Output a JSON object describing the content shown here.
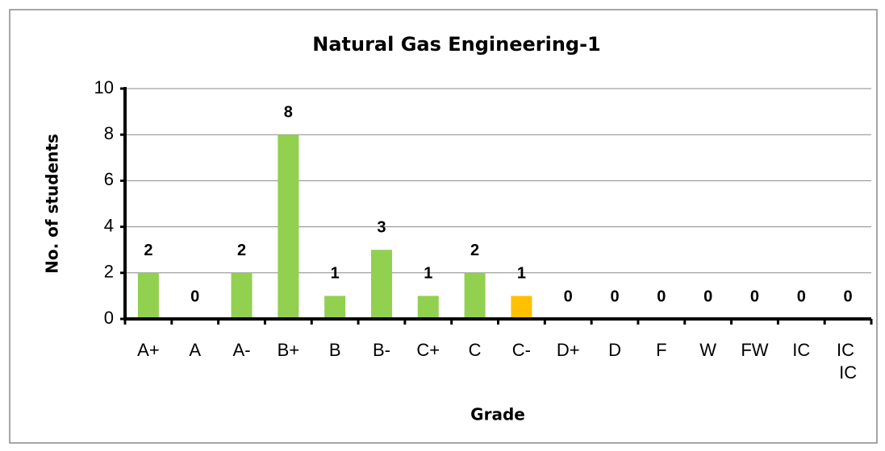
{
  "chart_data": {
    "type": "bar",
    "title": "Natural Gas Engineering-1",
    "x_label": "Grade",
    "y_label": "No. of students",
    "categories": [
      "A+",
      "A",
      "A-",
      "B+",
      "B",
      "B-",
      "C+",
      "C",
      "C-",
      "D+",
      "D",
      "F",
      "W",
      "FW",
      "IC",
      "IC IC"
    ],
    "values": [
      2,
      0,
      2,
      8,
      1,
      3,
      1,
      2,
      1,
      0,
      0,
      0,
      0,
      0,
      0,
      0
    ],
    "colors": [
      "#92d050",
      "#92d050",
      "#92d050",
      "#92d050",
      "#92d050",
      "#92d050",
      "#92d050",
      "#92d050",
      "#ffc000",
      "#92d050",
      "#92d050",
      "#92d050",
      "#92d050",
      "#92d050",
      "#92d050",
      "#92d050"
    ],
    "ylim": [
      0,
      10
    ],
    "yticks": [
      0,
      2,
      4,
      6,
      8,
      10
    ],
    "grid": true
  }
}
